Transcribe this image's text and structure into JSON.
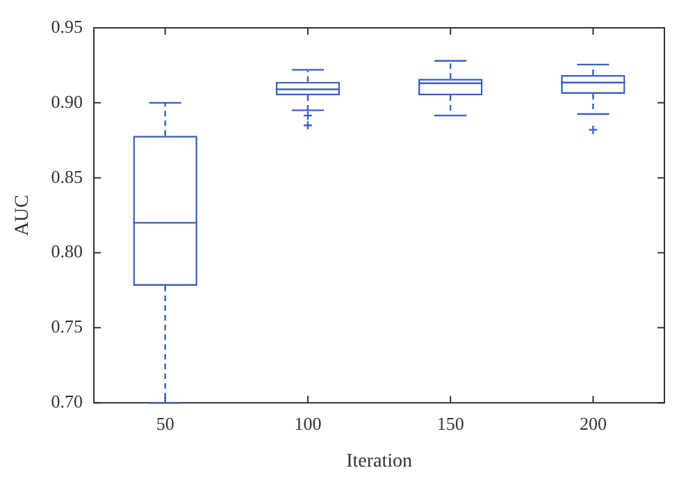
{
  "chart_data": {
    "type": "box",
    "xlabel": "Iteration",
    "ylabel": "AUC",
    "categories": [
      "50",
      "100",
      "150",
      "200"
    ],
    "color": "#3a5fc0",
    "boxes": [
      {
        "low": 0.7,
        "q1": 0.778,
        "median": 0.82,
        "q3": 0.878,
        "high": 0.9
      },
      {
        "low": 0.895,
        "q1": 0.905,
        "median": 0.909,
        "q3": 0.914,
        "high": 0.922,
        "outliers": [
          0.8915,
          0.885
        ]
      },
      {
        "low": 0.8915,
        "q1": 0.905,
        "median": 0.913,
        "q3": 0.916,
        "high": 0.928
      },
      {
        "low": 0.8925,
        "q1": 0.906,
        "median": 0.9135,
        "q3": 0.9185,
        "high": 0.9255,
        "outliers": [
          0.882
        ]
      }
    ],
    "ylim": [
      0.7,
      0.95
    ],
    "yticks": [
      {
        "value": 0.7,
        "label": "0.70"
      },
      {
        "value": 0.75,
        "label": "0.75"
      },
      {
        "value": 0.8,
        "label": "0.80"
      },
      {
        "value": 0.85,
        "label": "0.85"
      },
      {
        "value": 0.9,
        "label": "0.90"
      },
      {
        "value": 0.95,
        "label": "0.95"
      }
    ],
    "grid": false,
    "legend": false,
    "line_style": "dashed",
    "marker": "cross"
  }
}
